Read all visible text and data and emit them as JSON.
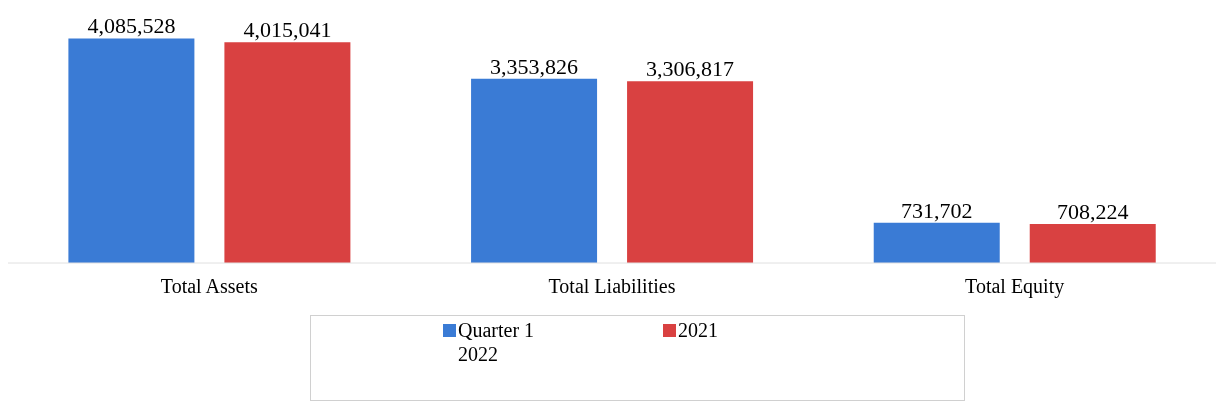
{
  "chart_data": {
    "type": "bar",
    "categories": [
      "Total Assets",
      "Total Liabilities",
      "Total Equity"
    ],
    "series": [
      {
        "name": "Quarter 1 2022",
        "color": "#3a7bd5",
        "values": [
          4085528,
          3353826,
          731702
        ],
        "value_labels": [
          "4,085,528",
          "3,353,826",
          "731,702"
        ]
      },
      {
        "name": "2021",
        "color": "#d94141",
        "values": [
          4015041,
          3306817,
          708224
        ],
        "value_labels": [
          "4,015,041",
          "3,306,817",
          "708,224"
        ]
      }
    ],
    "tick_labels": "x",
    "legend": "bottom"
  }
}
